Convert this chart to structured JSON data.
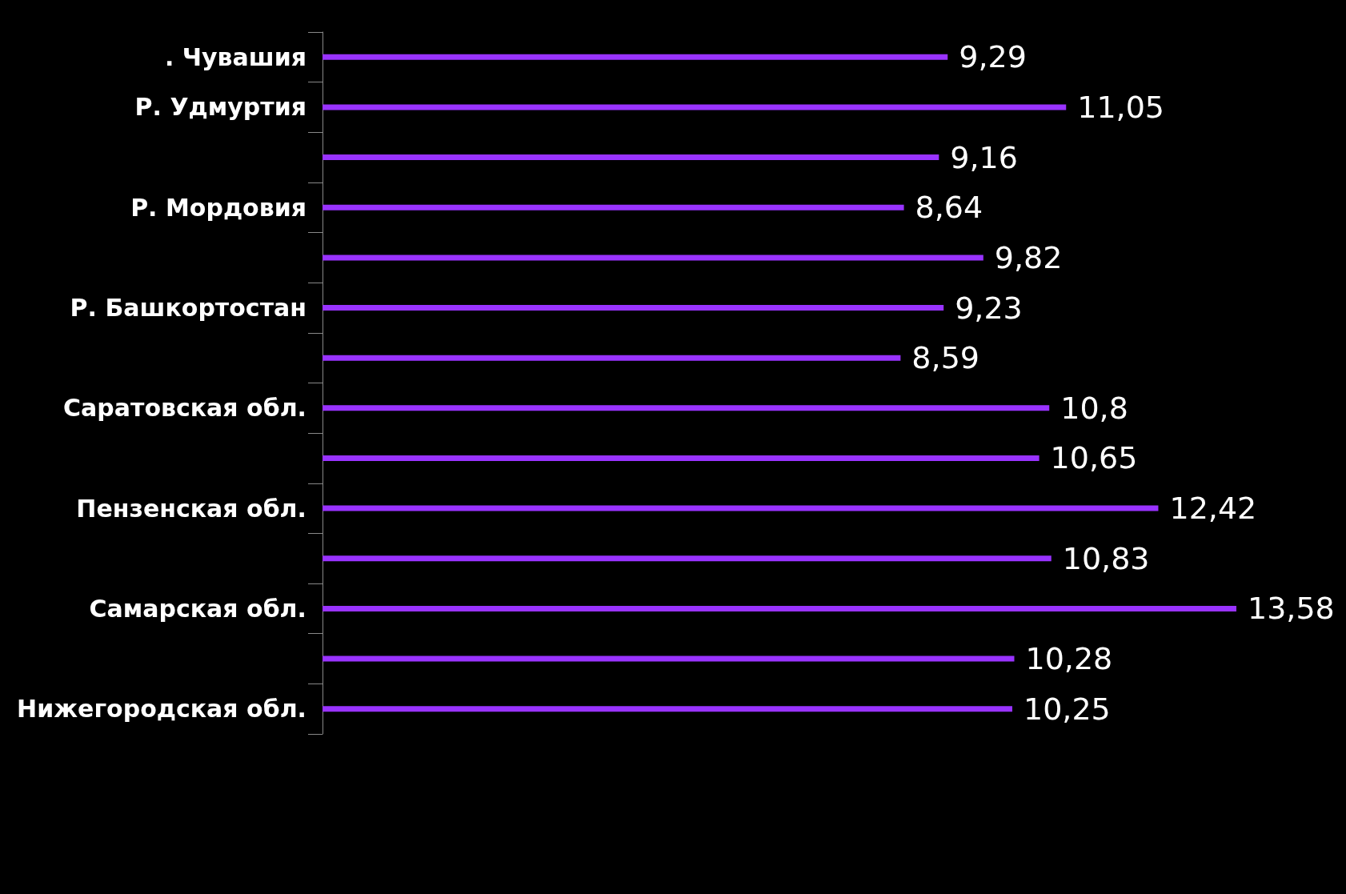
{
  "chart_data": {
    "type": "bar",
    "orientation": "horizontal",
    "categories": [
      ". Чувашия",
      "Р. Удмуртия",
      null,
      "Р. Мордовия",
      null,
      "Р. Башкортостан",
      null,
      "Саратовская обл.",
      null,
      "Пензенская обл.",
      null,
      "Самарская обл.",
      null,
      "Нижегородская обл."
    ],
    "values": [
      9.29,
      11.05,
      9.16,
      8.64,
      9.82,
      9.23,
      8.59,
      10.8,
      10.65,
      12.42,
      10.83,
      13.58,
      10.28,
      10.25
    ],
    "value_labels": [
      "9,29",
      "11,05",
      "9,16",
      "8,64",
      "9,82",
      "9,23",
      "8,59",
      "10,8",
      "10,65",
      "12,42",
      "10,83",
      "13,58",
      "10,28",
      "10,25"
    ],
    "color": "#9933ff",
    "grid": false
  }
}
